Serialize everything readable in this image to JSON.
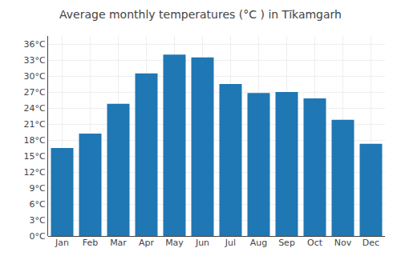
{
  "chart_data": {
    "type": "bar",
    "title": "Average monthly temperatures (°C ) in Tīkamgarh",
    "categories": [
      "Jan",
      "Feb",
      "Mar",
      "Apr",
      "May",
      "Jun",
      "Jul",
      "Aug",
      "Sep",
      "Oct",
      "Nov",
      "Dec"
    ],
    "values": [
      16.5,
      19.2,
      24.8,
      30.5,
      34.0,
      33.5,
      28.5,
      26.8,
      27.0,
      25.8,
      21.8,
      17.3
    ],
    "ylim": [
      0,
      37.5
    ],
    "yticks": [
      {
        "value": 0,
        "label": "0°C"
      },
      {
        "value": 3,
        "label": "3°C"
      },
      {
        "value": 6,
        "label": "6°C"
      },
      {
        "value": 9,
        "label": "9°C"
      },
      {
        "value": 12,
        "label": "12°C"
      },
      {
        "value": 15,
        "label": "15°C"
      },
      {
        "value": 18,
        "label": "18°C"
      },
      {
        "value": 21,
        "label": "21°C"
      },
      {
        "value": 24,
        "label": "24°C"
      },
      {
        "value": 27,
        "label": "27°C"
      },
      {
        "value": 30,
        "label": "30°C"
      },
      {
        "value": 33,
        "label": "33°C"
      },
      {
        "value": 36,
        "label": "36°C"
      }
    ],
    "grid": true
  }
}
